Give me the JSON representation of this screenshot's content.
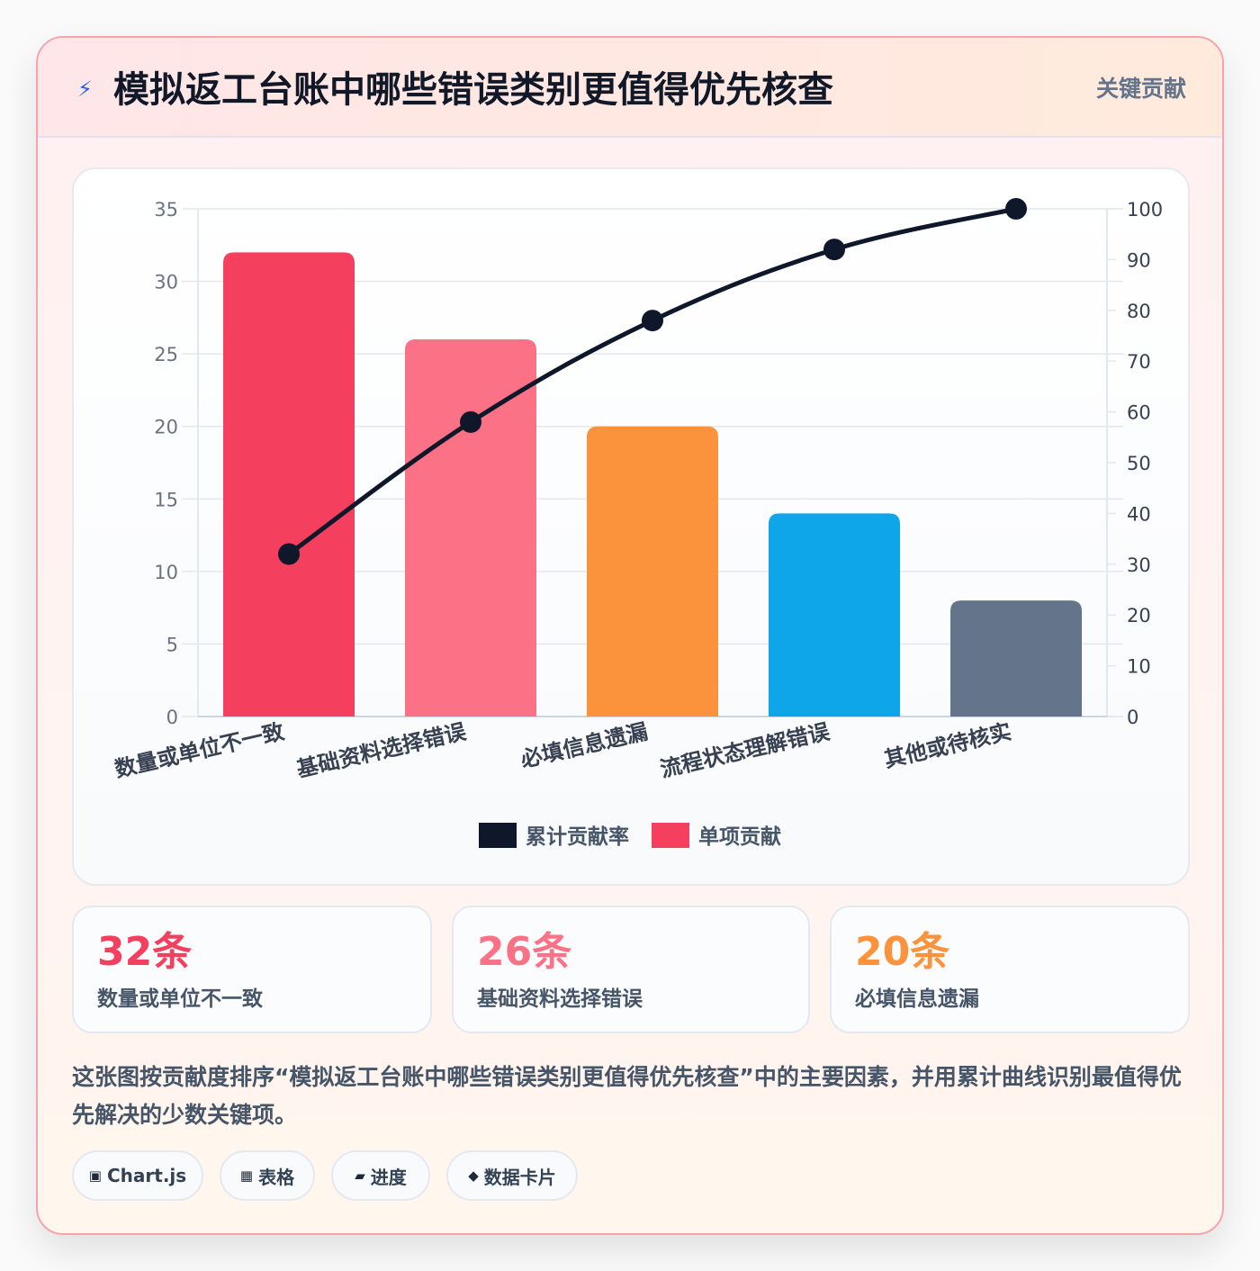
{
  "header": {
    "icon": "bolt-icon",
    "title": "模拟返工台账中哪些错误类别更值得优先核查",
    "tag": "关键贡献"
  },
  "chart_data": {
    "type": "bar",
    "categories": [
      "数量或单位不一致",
      "基础资料选择错误",
      "必填信息遗漏",
      "流程状态理解错误",
      "其他或待核实"
    ],
    "series": [
      {
        "name": "累计贡献率",
        "type": "line",
        "axis": "right",
        "color": "#0f172a",
        "values": [
          32,
          58,
          78,
          92,
          100
        ]
      },
      {
        "name": "单项贡献",
        "type": "bar",
        "axis": "left",
        "values": [
          32,
          26,
          20,
          14,
          8
        ],
        "colors": [
          "#f43f5e",
          "#fb7185",
          "#fb923c",
          "#0ea5e9",
          "#64748b"
        ]
      }
    ],
    "left_axis": {
      "min": 0,
      "max": 35,
      "ticks": [
        0,
        5,
        10,
        15,
        20,
        25,
        30,
        35
      ]
    },
    "right_axis": {
      "min": 0,
      "max": 100,
      "ticks": [
        0,
        10,
        20,
        30,
        40,
        50,
        60,
        70,
        80,
        90,
        100
      ]
    },
    "legend": [
      "累计贡献率",
      "单项贡献"
    ],
    "legend_position": "bottom",
    "grid": true
  },
  "stats": [
    {
      "value": "32条",
      "label": "数量或单位不一致",
      "color": "#f43f5e"
    },
    {
      "value": "26条",
      "label": "基础资料选择错误",
      "color": "#fb7185"
    },
    {
      "value": "20条",
      "label": "必填信息遗漏",
      "color": "#fb923c"
    }
  ],
  "description": "这张图按贡献度排序“模拟返工台账中哪些错误类别更值得优先核查”中的主要因素，并用累计曲线识别最值得优先解决的少数关键项。",
  "pills": [
    {
      "icon": "square-icon",
      "glyph": "▣",
      "label": "Chart.js"
    },
    {
      "icon": "grid-icon",
      "glyph": "▦",
      "label": "表格"
    },
    {
      "icon": "progress-icon",
      "glyph": "▰",
      "label": "进度"
    },
    {
      "icon": "diamond-icon",
      "glyph": "◆",
      "label": "数据卡片"
    }
  ]
}
